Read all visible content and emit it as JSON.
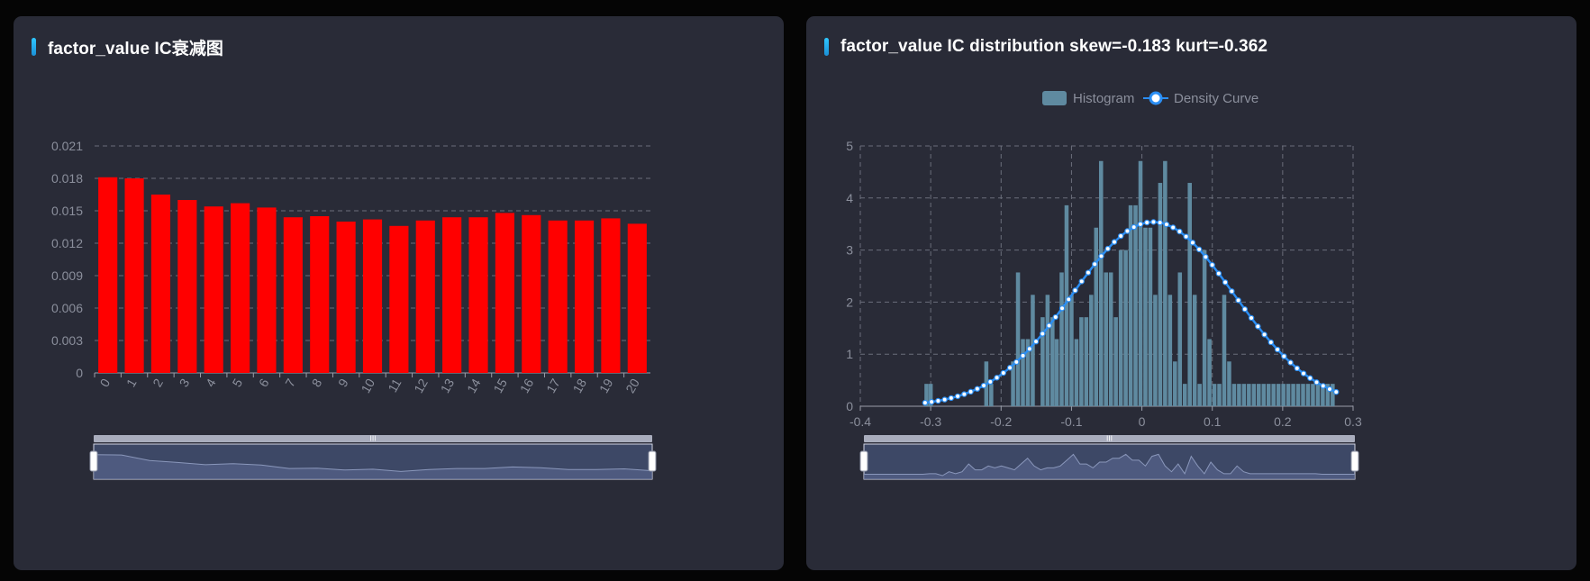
{
  "panels": {
    "left": {
      "title": "factor_value IC衰减图"
    },
    "right": {
      "title": "factor_value IC distribution skew=-0.183 kurt=-0.362"
    }
  },
  "colors": {
    "panel_bg": "#292b37",
    "bar": "#ff0000",
    "histogram": "#5f8aa0",
    "density": "#2b8ef3",
    "grid": "#6b6e7b",
    "zoom_fill": "#3d4866",
    "zoom_border": "#d2d6e4"
  },
  "chart_data": [
    {
      "type": "bar",
      "title": "factor_value IC衰减图",
      "categories": [
        "0",
        "1",
        "2",
        "3",
        "4",
        "5",
        "6",
        "7",
        "8",
        "9",
        "10",
        "11",
        "12",
        "13",
        "14",
        "15",
        "16",
        "17",
        "18",
        "19",
        "20"
      ],
      "values": [
        0.0181,
        0.018,
        0.0165,
        0.016,
        0.0154,
        0.0157,
        0.0153,
        0.0144,
        0.0145,
        0.014,
        0.0142,
        0.0136,
        0.0141,
        0.0144,
        0.0144,
        0.0148,
        0.0146,
        0.0141,
        0.0141,
        0.0143,
        0.0138
      ],
      "ylim": [
        0,
        0.021
      ],
      "yticks": [
        "0",
        "0.003",
        "0.006",
        "0.009",
        "0.012",
        "0.015",
        "0.018",
        "0.021"
      ],
      "grid": true,
      "datazoom": true
    },
    {
      "type": "bar",
      "title": "factor_value IC distribution skew=-0.183 kurt=-0.362",
      "legend": [
        "Histogram",
        "Density Curve"
      ],
      "legend_position": "top-center",
      "xlim": [
        -0.4,
        0.3
      ],
      "ylim": [
        0,
        5
      ],
      "xticks": [
        "-0.4",
        "-0.3",
        "-0.2",
        "-0.1",
        "0",
        "0.1",
        "0.2",
        "0.3"
      ],
      "yticks": [
        "0",
        "1",
        "2",
        "3",
        "4",
        "5"
      ],
      "grid": true,
      "datazoom": true,
      "histogram": {
        "name": "Histogram",
        "x": [
          -0.306,
          -0.3,
          -0.228,
          -0.221,
          -0.214,
          -0.183,
          -0.176,
          -0.169,
          -0.162,
          -0.155,
          -0.141,
          -0.134,
          -0.127,
          -0.121,
          -0.114,
          -0.107,
          -0.1,
          -0.093,
          -0.086,
          -0.079,
          -0.072,
          -0.065,
          -0.058,
          -0.051,
          -0.044,
          -0.037,
          -0.03,
          -0.023,
          -0.016,
          -0.009,
          -0.002,
          0.005,
          0.012,
          0.019,
          0.026,
          0.033,
          0.04,
          0.047,
          0.054,
          0.061,
          0.068,
          0.075,
          0.082,
          0.089,
          0.096,
          0.103,
          0.11,
          0.117,
          0.124,
          0.131,
          0.138,
          0.145,
          0.152,
          0.159,
          0.166,
          0.173,
          0.18,
          0.187,
          0.194,
          0.201,
          0.208,
          0.215,
          0.222,
          0.229,
          0.236,
          0.243,
          0.25,
          0.257,
          0.264,
          0.271
        ],
        "values": [
          0.43,
          0.43,
          0,
          0.86,
          0.43,
          0.86,
          2.57,
          1.29,
          1.29,
          2.14,
          1.71,
          2.14,
          1.71,
          1.29,
          2.57,
          3.86,
          2.14,
          1.29,
          1.71,
          1.71,
          2.14,
          3.43,
          4.71,
          2.57,
          2.57,
          1.71,
          3.0,
          3.0,
          3.86,
          3.86,
          4.71,
          3.43,
          3.43,
          2.14,
          4.29,
          4.71,
          2.14,
          0.86,
          2.57,
          0.43,
          4.29,
          2.14,
          0.43,
          3.0,
          1.29,
          0.43,
          0.43,
          2.14,
          0.86,
          0.43,
          0.43,
          0.43,
          0.43,
          0.43,
          0.43,
          0.43,
          0.43,
          0.43,
          0.43,
          0.43,
          0.43,
          0.43,
          0.43,
          0.43,
          0.43,
          0.43,
          0.43,
          0.43,
          0.43,
          0.43
        ]
      },
      "density": {
        "name": "Density Curve",
        "mean": 0.016,
        "peak": 3.54,
        "std": 0.115,
        "x_start": -0.308,
        "x_end": 0.276,
        "points": 64
      }
    }
  ]
}
